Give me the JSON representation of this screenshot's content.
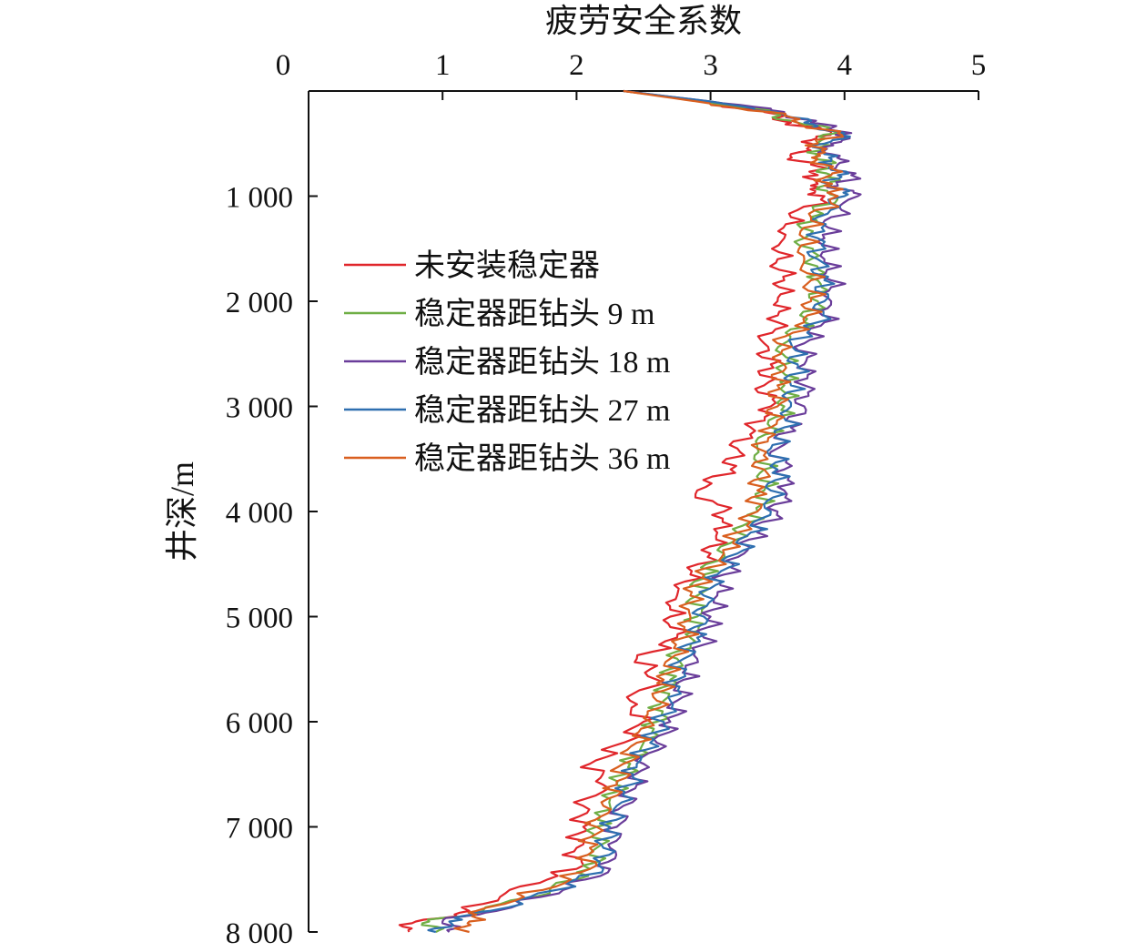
{
  "chart_data": {
    "type": "line",
    "xlabel": "疲劳安全系数",
    "ylabel": "井深/m",
    "xlim": [
      0,
      5
    ],
    "ylim": [
      0,
      8000
    ],
    "y_inverted": true,
    "x_axis_position": "top",
    "grid": false,
    "legend_position": "upper-left inside",
    "x_ticks": [
      "0",
      "1",
      "2",
      "3",
      "4",
      "5"
    ],
    "y_ticks": [
      "1 000",
      "2 000",
      "3 000",
      "4 000",
      "5 000",
      "6 000",
      "7 000",
      "8 000"
    ],
    "depths": [
      0,
      100,
      200,
      300,
      400,
      500,
      600,
      700,
      800,
      900,
      1000,
      1200,
      1400,
      1600,
      1800,
      2000,
      2200,
      2400,
      2600,
      2800,
      3000,
      3200,
      3400,
      3600,
      3800,
      4000,
      4200,
      4400,
      4600,
      4800,
      5000,
      5200,
      5400,
      5600,
      5800,
      6000,
      6200,
      6400,
      6600,
      6800,
      7000,
      7200,
      7400,
      7600,
      7800,
      7900,
      8000
    ],
    "series": [
      {
        "name": "未安装稳定器",
        "color": "#e0262b",
        "values": [
          2.35,
          2.95,
          3.4,
          3.6,
          3.9,
          3.75,
          3.6,
          3.75,
          3.8,
          3.75,
          3.85,
          3.6,
          3.55,
          3.5,
          3.55,
          3.5,
          3.5,
          3.4,
          3.45,
          3.4,
          3.45,
          3.3,
          3.2,
          3.15,
          2.9,
          3.1,
          3.05,
          3.0,
          2.85,
          2.75,
          2.7,
          2.75,
          2.45,
          2.6,
          2.4,
          2.5,
          2.35,
          2.1,
          2.2,
          2.05,
          2.05,
          2.0,
          2.0,
          1.5,
          1.2,
          0.8,
          0.75
        ]
      },
      {
        "name": "稳定器距钻头 9 m",
        "color": "#6fae45",
        "values": [
          2.35,
          2.95,
          3.45,
          3.65,
          3.95,
          3.8,
          3.8,
          3.85,
          3.9,
          3.85,
          3.95,
          3.75,
          3.7,
          3.75,
          3.8,
          3.8,
          3.7,
          3.55,
          3.55,
          3.55,
          3.55,
          3.45,
          3.35,
          3.4,
          3.4,
          3.35,
          3.2,
          3.1,
          2.95,
          2.9,
          2.9,
          2.85,
          2.75,
          2.7,
          2.65,
          2.6,
          2.5,
          2.4,
          2.3,
          2.25,
          2.15,
          2.15,
          2.1,
          1.8,
          1.3,
          0.9,
          0.95
        ]
      },
      {
        "name": "稳定器距钻头 18 m",
        "color": "#6a3d9a",
        "values": [
          2.35,
          3.0,
          3.55,
          3.75,
          4.05,
          3.9,
          3.9,
          3.95,
          4.05,
          3.95,
          4.1,
          3.9,
          3.85,
          3.85,
          3.9,
          3.9,
          3.85,
          3.7,
          3.7,
          3.7,
          3.7,
          3.6,
          3.5,
          3.55,
          3.55,
          3.5,
          3.35,
          3.25,
          3.1,
          3.05,
          3.0,
          2.95,
          2.9,
          2.8,
          2.75,
          2.7,
          2.6,
          2.5,
          2.45,
          2.35,
          2.3,
          2.25,
          2.25,
          1.9,
          1.4,
          1.0,
          1.05
        ]
      },
      {
        "name": "稳定器距钻头 27 m",
        "color": "#2e6fb0",
        "values": [
          2.35,
          3.0,
          3.5,
          3.7,
          4.0,
          3.85,
          3.85,
          3.9,
          3.95,
          3.9,
          4.0,
          3.8,
          3.8,
          3.8,
          3.85,
          3.85,
          3.8,
          3.6,
          3.65,
          3.6,
          3.6,
          3.55,
          3.45,
          3.5,
          3.45,
          3.45,
          3.3,
          3.2,
          3.05,
          2.95,
          2.95,
          2.9,
          2.8,
          2.75,
          2.7,
          2.65,
          2.55,
          2.45,
          2.4,
          2.3,
          2.25,
          2.2,
          2.2,
          1.85,
          1.35,
          1.05,
          0.95
        ]
      },
      {
        "name": "稳定器距钻头 36 m",
        "color": "#d95f1f",
        "values": [
          2.35,
          2.9,
          3.45,
          3.65,
          3.95,
          3.8,
          3.8,
          3.85,
          3.9,
          3.85,
          3.95,
          3.75,
          3.7,
          3.7,
          3.75,
          3.75,
          3.7,
          3.5,
          3.55,
          3.5,
          3.5,
          3.45,
          3.35,
          3.4,
          3.35,
          3.35,
          3.2,
          3.1,
          2.95,
          2.85,
          2.85,
          2.8,
          2.7,
          2.65,
          2.6,
          2.55,
          2.45,
          2.35,
          2.3,
          2.2,
          2.15,
          2.1,
          2.1,
          1.75,
          1.25,
          1.2,
          1.2
        ]
      }
    ]
  }
}
